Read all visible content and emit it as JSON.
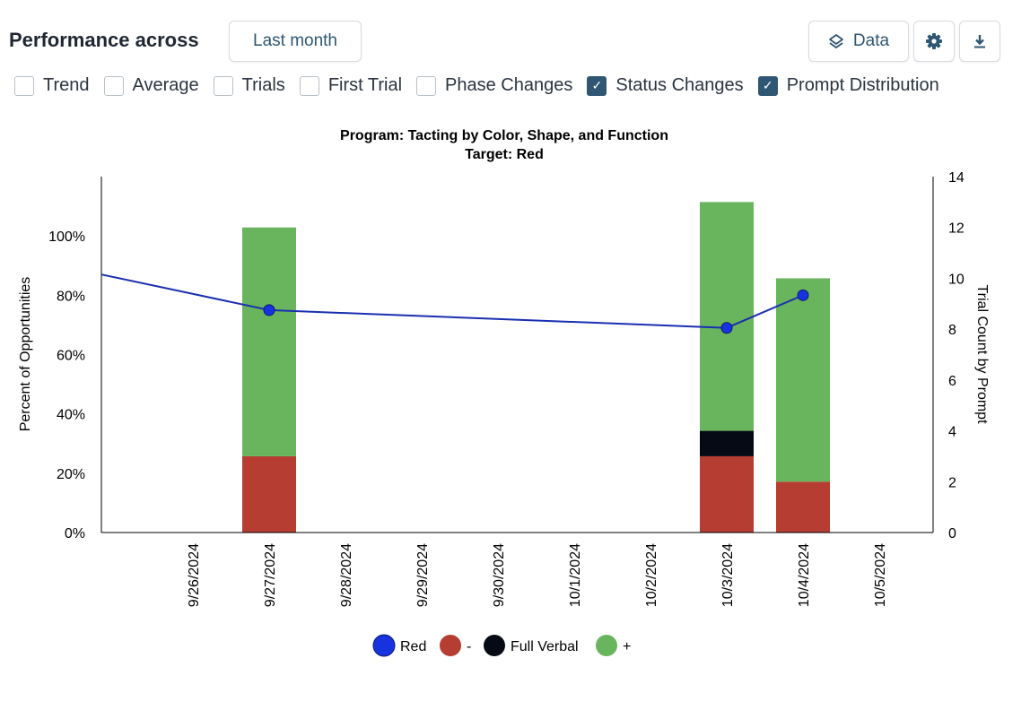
{
  "header": {
    "title": "Performance across",
    "range_button": "Last month",
    "data_button": "Data",
    "settings_icon": "gear-icon",
    "download_icon": "download-icon",
    "data_icon": "layers-icon"
  },
  "checkboxes": [
    {
      "label": "Trend",
      "checked": false
    },
    {
      "label": "Average",
      "checked": false
    },
    {
      "label": "Trials",
      "checked": false
    },
    {
      "label": "First Trial",
      "checked": false
    },
    {
      "label": "Phase Changes",
      "checked": false
    },
    {
      "label": "Status Changes",
      "checked": true
    },
    {
      "label": "Prompt Distribution",
      "checked": true
    }
  ],
  "chart_data": {
    "type": "bar",
    "title": "Program: Tacting by Color, Shape, and Function",
    "subtitle": "Target: Red",
    "ylabel": "Percent of Opportunities",
    "y2label": "Trial Count by Prompt",
    "ylim": [
      0,
      120
    ],
    "y_ticks": [
      "0%",
      "20%",
      "40%",
      "60%",
      "80%",
      "100%"
    ],
    "y2lim": [
      0,
      14
    ],
    "y2_ticks": [
      "0",
      "2",
      "4",
      "6",
      "8",
      "10",
      "12",
      "14"
    ],
    "categories": [
      "9/26/2024",
      "9/27/2024",
      "9/28/2024",
      "9/29/2024",
      "9/30/2024",
      "10/1/2024",
      "10/2/2024",
      "10/3/2024",
      "10/4/2024",
      "10/5/2024"
    ],
    "stacked_series": [
      {
        "name": "-",
        "color": "#b53d31",
        "values": [
          0,
          3,
          0,
          0,
          0,
          0,
          0,
          3,
          2,
          0
        ]
      },
      {
        "name": "Full Verbal",
        "color": "#050a14",
        "values": [
          0,
          0,
          0,
          0,
          0,
          0,
          0,
          1,
          0,
          0
        ]
      },
      {
        "name": "+",
        "color": "#69b55d",
        "values": [
          0,
          9,
          0,
          0,
          0,
          0,
          0,
          9,
          8,
          0
        ]
      }
    ],
    "line_series": {
      "name": "Red",
      "color": "#1a2fb0",
      "marker_color": "#1733e0",
      "entry_value": 87,
      "points": [
        {
          "x": "9/27/2024",
          "y": 75
        },
        {
          "x": "10/3/2024",
          "y": 69
        },
        {
          "x": "10/4/2024",
          "y": 80
        }
      ]
    },
    "legend": [
      "Red",
      "-",
      "Full Verbal",
      "+"
    ],
    "legend_position": "bottom",
    "grid": false
  }
}
